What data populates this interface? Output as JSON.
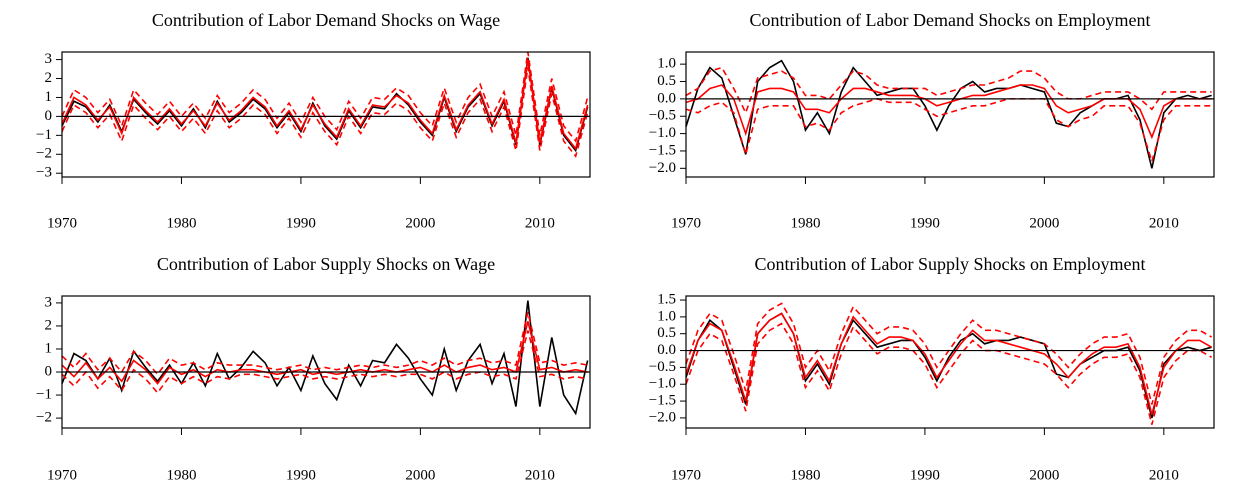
{
  "chart_data": [
    {
      "type": "line",
      "title": "Contribution of Labor Demand Shocks on Wage",
      "x": [
        1970,
        1971,
        1972,
        1973,
        1974,
        1975,
        1976,
        1977,
        1978,
        1979,
        1980,
        1981,
        1982,
        1983,
        1984,
        1985,
        1986,
        1987,
        1988,
        1989,
        1990,
        1991,
        1992,
        1993,
        1994,
        1995,
        1996,
        1997,
        1998,
        1999,
        2000,
        2001,
        2002,
        2003,
        2004,
        2005,
        2006,
        2007,
        2008,
        2009,
        2010,
        2011,
        2012,
        2013,
        2014
      ],
      "xlim": [
        1970,
        2014.2
      ],
      "xticks": [
        1970,
        1980,
        1990,
        2000,
        2010
      ],
      "ylim": [
        -3.2,
        3.4
      ],
      "yticks": [
        {
          "value": -3,
          "label": "−3"
        },
        {
          "value": -2,
          "label": "−2"
        },
        {
          "value": -1,
          "label": "−1"
        },
        0,
        1,
        2,
        3
      ],
      "series": [
        {
          "color": "#000000",
          "style": "solid",
          "values": [
            -0.5,
            0.8,
            0.5,
            -0.3,
            0.6,
            -0.8,
            0.9,
            0.2,
            -0.4,
            0.3,
            -0.5,
            0.4,
            -0.6,
            0.8,
            -0.3,
            0.2,
            0.9,
            0.4,
            -0.6,
            0.2,
            -0.8,
            0.7,
            -0.5,
            -1.2,
            0.3,
            -0.6,
            0.5,
            0.4,
            1.2,
            0.6,
            -0.3,
            -1.0,
            1.0,
            -0.8,
            0.5,
            1.2,
            -0.5,
            0.8,
            -1.5,
            3.1,
            -1.5,
            1.5,
            -1.0,
            -1.8,
            0.5
          ]
        },
        {
          "color": "#ff0000",
          "style": "solid",
          "values": [
            -0.4,
            1.0,
            0.6,
            -0.2,
            0.5,
            -0.9,
            1.0,
            0.3,
            -0.3,
            0.4,
            -0.4,
            0.3,
            -0.5,
            0.7,
            -0.2,
            0.3,
            1.0,
            0.5,
            -0.5,
            0.3,
            -0.7,
            0.6,
            -0.4,
            -1.1,
            0.4,
            -0.5,
            0.6,
            0.5,
            1.1,
            0.7,
            -0.2,
            -0.9,
            1.1,
            -0.7,
            0.6,
            1.3,
            -0.4,
            0.9,
            -1.4,
            3.0,
            -1.4,
            1.6,
            -0.9,
            -1.7,
            0.6
          ]
        },
        {
          "color": "#ff0000",
          "style": "dashed",
          "values": [
            0.0,
            1.4,
            1.0,
            0.2,
            0.9,
            -0.5,
            1.4,
            0.7,
            0.1,
            0.8,
            0.0,
            0.7,
            -0.1,
            1.1,
            0.2,
            0.7,
            1.4,
            0.9,
            -0.1,
            0.7,
            -0.3,
            1.0,
            0.0,
            -0.7,
            0.8,
            -0.1,
            1.0,
            0.9,
            1.5,
            1.1,
            0.2,
            -0.5,
            1.5,
            -0.3,
            1.0,
            1.7,
            0.0,
            1.3,
            -1.0,
            3.4,
            -1.0,
            2.0,
            -0.5,
            -1.3,
            1.0
          ]
        },
        {
          "color": "#ff0000",
          "style": "dashed",
          "values": [
            -0.8,
            0.6,
            0.2,
            -0.6,
            0.1,
            -1.3,
            0.6,
            -0.1,
            -0.7,
            0.0,
            -0.8,
            -0.1,
            -0.9,
            0.3,
            -0.6,
            -0.1,
            0.6,
            0.1,
            -0.9,
            -0.1,
            -1.1,
            0.2,
            -0.8,
            -1.5,
            0.0,
            -0.9,
            0.2,
            0.1,
            0.7,
            0.3,
            -0.6,
            -1.3,
            0.7,
            -1.1,
            0.2,
            0.9,
            -0.8,
            0.5,
            -1.8,
            2.6,
            -1.8,
            1.2,
            -1.3,
            -2.1,
            0.2
          ]
        }
      ]
    },
    {
      "type": "line",
      "title": "Contribution of Labor Demand Shocks on Employment",
      "x": [
        1970,
        1971,
        1972,
        1973,
        1974,
        1975,
        1976,
        1977,
        1978,
        1979,
        1980,
        1981,
        1982,
        1983,
        1984,
        1985,
        1986,
        1987,
        1988,
        1989,
        1990,
        1991,
        1992,
        1993,
        1994,
        1995,
        1996,
        1997,
        1998,
        1999,
        2000,
        2001,
        2002,
        2003,
        2004,
        2005,
        2006,
        2007,
        2008,
        2009,
        2010,
        2011,
        2012,
        2013,
        2014
      ],
      "xlim": [
        1970,
        2014.2
      ],
      "xticks": [
        1970,
        1980,
        1990,
        2000,
        2010
      ],
      "ylim": [
        -2.25,
        1.35
      ],
      "yticks": [
        {
          "value": -2,
          "label": "−2.0"
        },
        {
          "value": -1.5,
          "label": "−1.5"
        },
        {
          "value": -1,
          "label": "−1.0"
        },
        {
          "value": -0.5,
          "label": "−0.5"
        },
        {
          "value": 0,
          "label": "0.0"
        },
        0.5,
        {
          "value": 1,
          "label": "1.0"
        }
      ],
      "series": [
        {
          "color": "#000000",
          "style": "solid",
          "values": [
            -0.8,
            0.3,
            0.9,
            0.6,
            -0.5,
            -1.6,
            0.5,
            0.9,
            1.1,
            0.5,
            -0.9,
            -0.4,
            -1.0,
            0.2,
            0.9,
            0.5,
            0.1,
            0.2,
            0.3,
            0.3,
            -0.2,
            -0.9,
            -0.2,
            0.3,
            0.5,
            0.2,
            0.3,
            0.3,
            0.4,
            0.3,
            0.2,
            -0.7,
            -0.8,
            -0.4,
            -0.2,
            0.0,
            0.0,
            0.1,
            -0.6,
            -2.0,
            -0.4,
            0.0,
            0.1,
            0.0,
            0.1
          ]
        },
        {
          "color": "#ff0000",
          "style": "solid",
          "values": [
            -0.1,
            0.0,
            0.3,
            0.4,
            0.0,
            -1.0,
            0.2,
            0.3,
            0.3,
            0.2,
            -0.3,
            -0.3,
            -0.4,
            0.0,
            0.3,
            0.3,
            0.2,
            0.1,
            0.1,
            0.1,
            0.0,
            -0.2,
            -0.1,
            0.0,
            0.1,
            0.1,
            0.2,
            0.3,
            0.4,
            0.4,
            0.3,
            -0.2,
            -0.4,
            -0.3,
            -0.2,
            0.0,
            0.0,
            0.0,
            -0.3,
            -1.1,
            -0.2,
            0.0,
            0.0,
            0.0,
            0.0
          ]
        },
        {
          "color": "#ff0000",
          "style": "dashed",
          "values": [
            0.1,
            0.3,
            0.8,
            0.9,
            0.3,
            -0.4,
            0.6,
            0.7,
            0.8,
            0.6,
            0.1,
            0.1,
            0.0,
            0.4,
            0.8,
            0.7,
            0.4,
            0.3,
            0.3,
            0.3,
            0.3,
            0.1,
            0.2,
            0.3,
            0.4,
            0.4,
            0.5,
            0.6,
            0.8,
            0.8,
            0.6,
            0.2,
            0.0,
            0.0,
            0.1,
            0.2,
            0.2,
            0.2,
            0.0,
            -0.3,
            0.2,
            0.2,
            0.2,
            0.2,
            0.2
          ]
        },
        {
          "color": "#ff0000",
          "style": "dashed",
          "values": [
            -0.3,
            -0.4,
            -0.2,
            -0.1,
            -0.4,
            -1.6,
            -0.3,
            -0.2,
            -0.2,
            -0.2,
            -0.8,
            -0.7,
            -0.9,
            -0.4,
            -0.2,
            -0.1,
            0.0,
            -0.1,
            -0.1,
            -0.1,
            -0.3,
            -0.5,
            -0.4,
            -0.3,
            -0.2,
            -0.2,
            -0.1,
            0.0,
            0.0,
            0.0,
            0.0,
            -0.6,
            -0.8,
            -0.6,
            -0.5,
            -0.2,
            -0.2,
            -0.2,
            -0.7,
            -1.8,
            -0.6,
            -0.2,
            -0.2,
            -0.2,
            -0.2
          ]
        }
      ]
    },
    {
      "type": "line",
      "title": "Contribution of Labor Supply Shocks on Wage",
      "x": [
        1970,
        1971,
        1972,
        1973,
        1974,
        1975,
        1976,
        1977,
        1978,
        1979,
        1980,
        1981,
        1982,
        1983,
        1984,
        1985,
        1986,
        1987,
        1988,
        1989,
        1990,
        1991,
        1992,
        1993,
        1994,
        1995,
        1996,
        1997,
        1998,
        1999,
        2000,
        2001,
        2002,
        2003,
        2004,
        2005,
        2006,
        2007,
        2008,
        2009,
        2010,
        2011,
        2012,
        2013,
        2014
      ],
      "xlim": [
        1970,
        2014.2
      ],
      "xticks": [
        1970,
        1980,
        1990,
        2000,
        2010
      ],
      "ylim": [
        -2.43,
        3.3
      ],
      "yticks": [
        {
          "value": -2,
          "label": "−2"
        },
        {
          "value": -1,
          "label": "−1"
        },
        0,
        1,
        2,
        3
      ],
      "series": [
        {
          "color": "#000000",
          "style": "solid",
          "values": [
            -0.5,
            0.8,
            0.5,
            -0.3,
            0.6,
            -0.8,
            0.9,
            0.2,
            -0.4,
            0.3,
            -0.5,
            0.4,
            -0.6,
            0.8,
            -0.3,
            0.2,
            0.9,
            0.4,
            -0.6,
            0.2,
            -0.8,
            0.7,
            -0.5,
            -1.2,
            0.3,
            -0.6,
            0.5,
            0.4,
            1.2,
            0.6,
            -0.3,
            -1.0,
            1.0,
            -0.8,
            0.5,
            1.2,
            -0.5,
            0.8,
            -1.5,
            3.1,
            -1.5,
            1.5,
            -1.0,
            -1.8,
            0.5
          ]
        },
        {
          "color": "#ff0000",
          "style": "solid",
          "values": [
            0.3,
            -0.2,
            0.4,
            -0.3,
            0.2,
            -0.4,
            0.5,
            0.1,
            -0.5,
            0.2,
            -0.1,
            0.1,
            -0.2,
            0.1,
            0.0,
            0.1,
            0.1,
            0.0,
            -0.1,
            0.0,
            0.1,
            -0.1,
            0.0,
            -0.1,
            0.0,
            0.1,
            0.0,
            0.1,
            0.0,
            0.1,
            0.2,
            0.0,
            0.3,
            0.0,
            0.2,
            0.3,
            0.1,
            0.2,
            0.0,
            2.2,
            0.1,
            0.2,
            0.0,
            0.1,
            0.0
          ]
        },
        {
          "color": "#ff0000",
          "style": "dashed",
          "values": [
            0.7,
            0.2,
            0.8,
            0.1,
            0.6,
            0.0,
            0.9,
            0.5,
            -0.1,
            0.6,
            0.3,
            0.4,
            0.1,
            0.4,
            0.3,
            0.3,
            0.3,
            0.2,
            0.1,
            0.2,
            0.3,
            0.1,
            0.2,
            0.1,
            0.2,
            0.3,
            0.2,
            0.3,
            0.2,
            0.3,
            0.5,
            0.3,
            0.6,
            0.3,
            0.5,
            0.6,
            0.4,
            0.5,
            0.3,
            2.6,
            0.4,
            0.5,
            0.3,
            0.4,
            0.3
          ]
        },
        {
          "color": "#ff0000",
          "style": "dashed",
          "values": [
            -0.1,
            -0.6,
            0.0,
            -0.7,
            -0.2,
            -0.8,
            0.1,
            -0.3,
            -0.9,
            -0.2,
            -0.5,
            -0.2,
            -0.5,
            -0.2,
            -0.3,
            -0.1,
            -0.1,
            -0.2,
            -0.3,
            -0.2,
            -0.1,
            -0.3,
            -0.2,
            -0.3,
            -0.2,
            -0.1,
            -0.2,
            -0.1,
            -0.2,
            -0.1,
            -0.1,
            -0.3,
            0.0,
            -0.3,
            -0.1,
            0.0,
            -0.2,
            -0.1,
            -0.3,
            1.8,
            -0.2,
            -0.1,
            -0.3,
            -0.2,
            -0.3
          ]
        }
      ]
    },
    {
      "type": "line",
      "title": "Contribution of Labor Supply Shocks on Employment",
      "x": [
        1970,
        1971,
        1972,
        1973,
        1974,
        1975,
        1976,
        1977,
        1978,
        1979,
        1980,
        1981,
        1982,
        1983,
        1984,
        1985,
        1986,
        1987,
        1988,
        1989,
        1990,
        1991,
        1992,
        1993,
        1994,
        1995,
        1996,
        1997,
        1998,
        1999,
        2000,
        2001,
        2002,
        2003,
        2004,
        2005,
        2006,
        2007,
        2008,
        2009,
        2010,
        2011,
        2012,
        2013,
        2014
      ],
      "xlim": [
        1970,
        2014.2
      ],
      "xticks": [
        1970,
        1980,
        1990,
        2000,
        2010
      ],
      "ylim": [
        -2.3,
        1.62
      ],
      "yticks": [
        {
          "value": -2,
          "label": "−2.0"
        },
        {
          "value": -1.5,
          "label": "−1.5"
        },
        {
          "value": -1,
          "label": "−1.0"
        },
        {
          "value": -0.5,
          "label": "−0.5"
        },
        {
          "value": 0,
          "label": "0.0"
        },
        0.5,
        {
          "value": 1,
          "label": "1.0"
        },
        1.5
      ],
      "series": [
        {
          "color": "#000000",
          "style": "solid",
          "values": [
            -0.8,
            0.3,
            0.9,
            0.6,
            -0.5,
            -1.6,
            0.5,
            0.9,
            1.1,
            0.5,
            -0.9,
            -0.4,
            -1.0,
            0.2,
            0.9,
            0.5,
            0.1,
            0.2,
            0.3,
            0.3,
            -0.2,
            -0.9,
            -0.2,
            0.3,
            0.5,
            0.2,
            0.3,
            0.3,
            0.4,
            0.3,
            0.2,
            -0.7,
            -0.8,
            -0.4,
            -0.2,
            0.0,
            0.0,
            0.1,
            -0.6,
            -2.0,
            -0.4,
            0.0,
            0.1,
            0.0,
            0.1
          ]
        },
        {
          "color": "#ff0000",
          "style": "solid",
          "values": [
            -0.7,
            0.3,
            0.8,
            0.6,
            -0.4,
            -1.5,
            0.5,
            0.9,
            1.1,
            0.5,
            -0.8,
            -0.3,
            -0.9,
            0.2,
            1.0,
            0.6,
            0.2,
            0.4,
            0.4,
            0.3,
            -0.1,
            -0.8,
            -0.3,
            0.2,
            0.6,
            0.3,
            0.3,
            0.2,
            0.1,
            0.0,
            -0.1,
            -0.4,
            -0.8,
            -0.4,
            -0.1,
            0.1,
            0.1,
            0.2,
            -0.5,
            -1.9,
            -0.5,
            0.0,
            0.3,
            0.3,
            0.1
          ]
        },
        {
          "color": "#ff0000",
          "style": "dashed",
          "values": [
            -0.4,
            0.6,
            1.1,
            0.9,
            -0.1,
            -1.2,
            0.8,
            1.2,
            1.4,
            0.8,
            -0.5,
            0.0,
            -0.6,
            0.5,
            1.3,
            0.9,
            0.5,
            0.7,
            0.7,
            0.6,
            0.2,
            -0.5,
            0.0,
            0.5,
            0.9,
            0.6,
            0.6,
            0.5,
            0.4,
            0.3,
            0.2,
            -0.1,
            -0.5,
            -0.1,
            0.2,
            0.4,
            0.4,
            0.5,
            -0.2,
            -1.6,
            -0.2,
            0.3,
            0.6,
            0.6,
            0.4
          ]
        },
        {
          "color": "#ff0000",
          "style": "dashed",
          "values": [
            -1.0,
            0.0,
            0.5,
            0.3,
            -0.7,
            -1.8,
            0.2,
            0.6,
            0.8,
            0.2,
            -1.1,
            -0.6,
            -1.2,
            -0.1,
            0.7,
            0.3,
            -0.1,
            0.1,
            0.1,
            0.0,
            -0.4,
            -1.1,
            -0.6,
            -0.1,
            0.3,
            0.0,
            0.0,
            -0.1,
            -0.2,
            -0.3,
            -0.4,
            -0.7,
            -1.1,
            -0.7,
            -0.4,
            -0.2,
            -0.2,
            -0.1,
            -0.8,
            -2.2,
            -0.8,
            -0.3,
            0.0,
            0.0,
            -0.2
          ]
        }
      ]
    }
  ]
}
